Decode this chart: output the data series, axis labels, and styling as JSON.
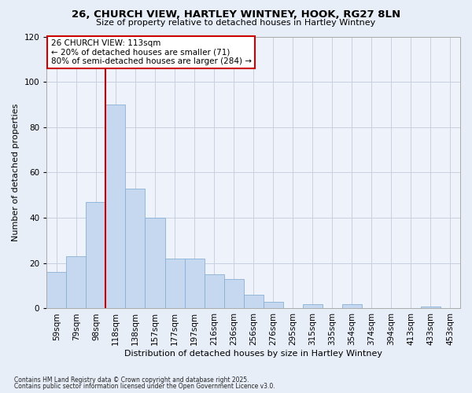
{
  "title_line1": "26, CHURCH VIEW, HARTLEY WINTNEY, HOOK, RG27 8LN",
  "title_line2": "Size of property relative to detached houses in Hartley Wintney",
  "xlabel": "Distribution of detached houses by size in Hartley Wintney",
  "ylabel": "Number of detached properties",
  "bar_labels": [
    "59sqm",
    "79sqm",
    "98sqm",
    "118sqm",
    "138sqm",
    "157sqm",
    "177sqm",
    "197sqm",
    "216sqm",
    "236sqm",
    "256sqm",
    "276sqm",
    "295sqm",
    "315sqm",
    "335sqm",
    "354sqm",
    "374sqm",
    "394sqm",
    "413sqm",
    "433sqm",
    "453sqm"
  ],
  "bar_values": [
    16,
    23,
    47,
    90,
    53,
    40,
    22,
    22,
    15,
    13,
    6,
    3,
    0,
    2,
    0,
    2,
    0,
    0,
    0,
    1,
    0
  ],
  "bar_color": "#c5d8ef",
  "bar_edge_color": "#8ab0d4",
  "vline_color": "#cc0000",
  "ylim": [
    0,
    120
  ],
  "yticks": [
    0,
    20,
    40,
    60,
    80,
    100,
    120
  ],
  "annotation_title": "26 CHURCH VIEW: 113sqm",
  "annotation_line1": "← 20% of detached houses are smaller (71)",
  "annotation_line2": "80% of semi-detached houses are larger (284) →",
  "annotation_box_color": "#ffffff",
  "annotation_box_edge": "#cc0000",
  "footnote1": "Contains HM Land Registry data © Crown copyright and database right 2025.",
  "footnote2": "Contains public sector information licensed under the Open Government Licence v3.0.",
  "bg_color": "#e8eef8",
  "plot_bg_color": "#eef2fa",
  "grid_color": "#c8d0e0"
}
